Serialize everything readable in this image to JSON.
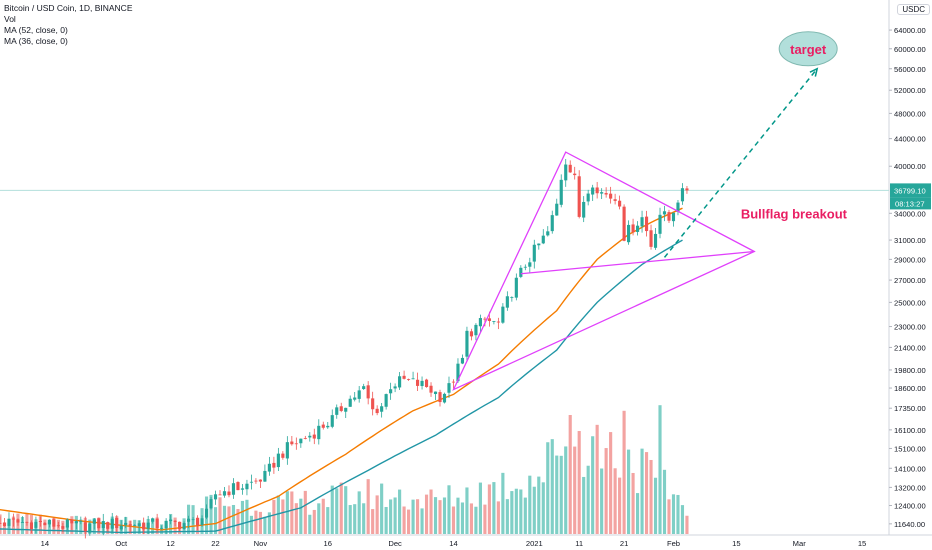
{
  "legend": {
    "symbol": "Bitcoin / USD Coin, 1D, BINANCE",
    "volume": "Vol",
    "ma1": "MA (52, close, 0)",
    "ma2": "MA (36, close, 0)"
  },
  "currency_button": "USDC",
  "chart_data": {
    "type": "candlestick",
    "title": "Bitcoin / USD Coin, 1D, BINANCE",
    "y_axis": {
      "scale": "log",
      "range": [
        11200,
        71000
      ],
      "ticks": [
        64000,
        60000,
        56000,
        52000,
        48000,
        44000,
        40000,
        34000,
        31000,
        29000,
        27000,
        25000,
        23000,
        21400,
        19800,
        18600,
        17350,
        16100,
        15100,
        14100,
        13200,
        12400,
        11640
      ],
      "tick_labels": [
        "64000.00",
        "60000.00",
        "56000.00",
        "52000.00",
        "48000.00",
        "44000.00",
        "40000.00",
        "34000.00",
        "31000.00",
        "29000.00",
        "27000.00",
        "25000.00",
        "23000.00",
        "21400.00",
        "19800.00",
        "18600.00",
        "17350.00",
        "16100.00",
        "15100.00",
        "14100.00",
        "13200.00",
        "12400.00",
        "11640.00"
      ],
      "last_price_label": "36799.10",
      "countdown_label": "08:13:27",
      "last_price": 36799.1
    },
    "x_axis": {
      "range": [
        "2020-09-04",
        "2021-03-21"
      ],
      "ticks": [
        {
          "date": "2020-09-14",
          "label": "14"
        },
        {
          "date": "2020-10-01",
          "label": "Oct"
        },
        {
          "date": "2020-10-12",
          "label": "12"
        },
        {
          "date": "2020-10-22",
          "label": "22"
        },
        {
          "date": "2020-11-01",
          "label": "Nov"
        },
        {
          "date": "2020-11-16",
          "label": "16"
        },
        {
          "date": "2020-12-01",
          "label": "Dec"
        },
        {
          "date": "2020-12-14",
          "label": "14"
        },
        {
          "date": "2021-01-01",
          "label": "2021"
        },
        {
          "date": "2021-01-11",
          "label": "11"
        },
        {
          "date": "2021-01-21",
          "label": "21"
        },
        {
          "date": "2021-02-01",
          "label": "Feb"
        },
        {
          "date": "2021-02-15",
          "label": "15"
        },
        {
          "date": "2021-03-01",
          "label": "Mar"
        },
        {
          "date": "2021-03-15",
          "label": "15"
        }
      ]
    },
    "price_path": [
      [
        "2020-09-01",
        11650
      ],
      [
        "2020-09-10",
        11700
      ],
      [
        "2020-09-20",
        11550
      ],
      [
        "2020-10-01",
        11650
      ],
      [
        "2020-10-10",
        11600
      ],
      [
        "2020-10-17",
        11700
      ],
      [
        "2020-10-20",
        12000
      ],
      [
        "2020-10-22",
        12900
      ],
      [
        "2020-10-25",
        13100
      ],
      [
        "2020-10-29",
        13300
      ],
      [
        "2020-11-02",
        13700
      ],
      [
        "2020-11-05",
        14700
      ],
      [
        "2020-11-08",
        15300
      ],
      [
        "2020-11-12",
        15800
      ],
      [
        "2020-11-17",
        16700
      ],
      [
        "2020-11-20",
        17700
      ],
      [
        "2020-11-24",
        18500
      ],
      [
        "2020-11-26",
        17200
      ],
      [
        "2020-11-28",
        17500
      ],
      [
        "2020-11-30",
        18800
      ],
      [
        "2020-12-03",
        19100
      ],
      [
        "2020-12-08",
        18700
      ],
      [
        "2020-12-11",
        18100
      ],
      [
        "2020-12-13",
        18600
      ],
      [
        "2020-12-16",
        20500
      ],
      [
        "2020-12-17",
        22400
      ],
      [
        "2020-12-21",
        23500
      ],
      [
        "2020-12-24",
        23200
      ],
      [
        "2020-12-27",
        26000
      ],
      [
        "2020-12-30",
        28500
      ],
      [
        "2021-01-02",
        30500
      ],
      [
        "2021-01-04",
        31800
      ],
      [
        "2021-01-06",
        35000
      ],
      [
        "2021-01-07",
        38500
      ],
      [
        "2021-01-08",
        40800
      ],
      [
        "2021-01-10",
        39000
      ],
      [
        "2021-01-11",
        33000
      ],
      [
        "2021-01-12",
        35500
      ],
      [
        "2021-01-14",
        38000
      ],
      [
        "2021-01-16",
        36500
      ],
      [
        "2021-01-18",
        36000
      ],
      [
        "2021-01-20",
        35500
      ],
      [
        "2021-01-21",
        31500
      ],
      [
        "2021-01-23",
        32500
      ],
      [
        "2021-01-25",
        33500
      ],
      [
        "2021-01-27",
        30500
      ],
      [
        "2021-01-29",
        34000
      ],
      [
        "2021-01-31",
        33200
      ],
      [
        "2021-02-02",
        35800
      ],
      [
        "2021-02-04",
        36799
      ]
    ],
    "volume_path": [
      [
        "2020-09-01",
        0.12
      ],
      [
        "2020-09-20",
        0.1
      ],
      [
        "2020-10-10",
        0.09
      ],
      [
        "2020-10-21",
        0.23
      ],
      [
        "2020-11-05",
        0.22
      ],
      [
        "2020-11-25",
        0.3
      ],
      [
        "2020-12-10",
        0.25
      ],
      [
        "2020-12-20",
        0.32
      ],
      [
        "2021-01-03",
        0.45
      ],
      [
        "2021-01-08",
        0.8
      ],
      [
        "2021-01-12",
        0.7
      ],
      [
        "2021-01-21",
        0.6
      ],
      [
        "2021-01-28",
        0.4
      ],
      [
        "2021-02-04",
        0.22
      ]
    ],
    "volume_spikes": [
      [
        "2021-01-09",
        0.85
      ],
      [
        "2021-01-21",
        0.88
      ],
      [
        "2021-01-29",
        0.92
      ]
    ],
    "ma_52": [
      [
        "2020-09-01",
        11450
      ],
      [
        "2020-10-01",
        11300
      ],
      [
        "2020-10-22",
        11350
      ],
      [
        "2020-11-10",
        12300
      ],
      [
        "2020-11-25",
        14000
      ],
      [
        "2020-12-10",
        15800
      ],
      [
        "2020-12-24",
        18000
      ],
      [
        "2021-01-06",
        21200
      ],
      [
        "2021-01-15",
        25000
      ],
      [
        "2021-01-25",
        28500
      ],
      [
        "2021-02-03",
        31000
      ]
    ],
    "ma_36": [
      [
        "2020-09-01",
        12300
      ],
      [
        "2020-09-20",
        11800
      ],
      [
        "2020-10-10",
        11400
      ],
      [
        "2020-10-22",
        11650
      ],
      [
        "2020-11-05",
        12800
      ],
      [
        "2020-11-20",
        14800
      ],
      [
        "2020-12-05",
        17200
      ],
      [
        "2020-12-14",
        18200
      ],
      [
        "2020-12-24",
        20200
      ],
      [
        "2021-01-06",
        24300
      ],
      [
        "2021-01-15",
        29000
      ],
      [
        "2021-01-22",
        31600
      ],
      [
        "2021-01-28",
        33200
      ],
      [
        "2021-02-03",
        34600
      ]
    ],
    "annotations": [
      {
        "type": "triangle",
        "points": [
          [
            "2020-12-14",
            18500
          ],
          [
            "2021-01-08",
            42000
          ],
          [
            "2021-02-19",
            29800
          ]
        ]
      },
      {
        "type": "line",
        "from": [
          "2020-12-29",
          27600
        ],
        "to": [
          "2021-02-19",
          29800
        ]
      },
      {
        "type": "dashed_arrow",
        "from": [
          "2021-01-30",
          29200
        ],
        "to": [
          "2021-03-05",
          56000
        ]
      },
      {
        "type": "label",
        "text": "target",
        "at": [
          "2021-03-03",
          60000
        ]
      },
      {
        "type": "label",
        "text": "Bullflag breakout",
        "at": [
          "2021-02-16",
          34000
        ]
      }
    ],
    "colors": {
      "up": "#26a69a",
      "down": "#ef5350",
      "vol_up": "#7fcfc6",
      "vol_down": "#f3a3a1",
      "ma_52": "#2196a6",
      "ma_36": "#f57c00",
      "drawing": "#e040fb",
      "arrow": "#009688",
      "label": "#e91e63",
      "target_fill": "#b2dfdb"
    }
  }
}
